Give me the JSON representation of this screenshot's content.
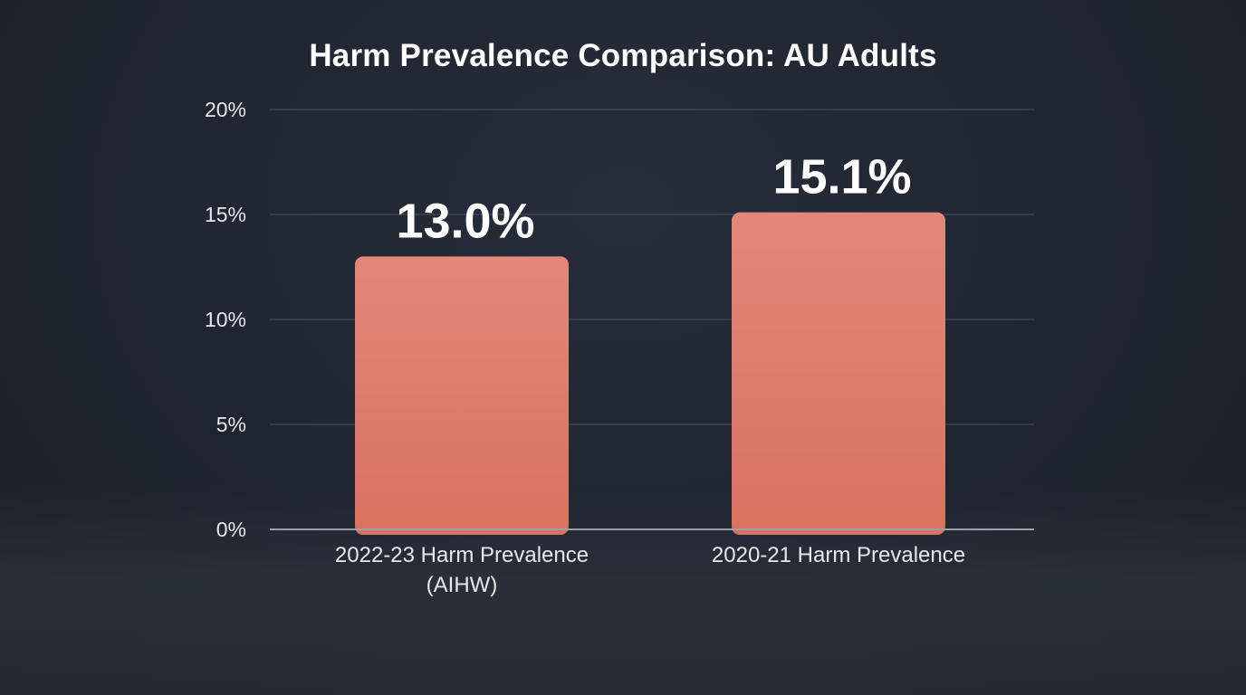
{
  "chart_data": {
    "type": "bar",
    "title": "Harm Prevalence Comparison: AU Adults",
    "categories": [
      [
        "2022-23 Harm Prevalence",
        "(AIHW)"
      ],
      [
        "2020-21 Harm Prevalence"
      ]
    ],
    "values": [
      13.0,
      15.1
    ],
    "value_labels": [
      "13.0%",
      "15.1%"
    ],
    "ylim": [
      0,
      20
    ],
    "yticks": [
      0,
      5,
      10,
      15,
      20
    ],
    "ytick_labels": [
      "0%",
      "5%",
      "10%",
      "15%",
      "20%"
    ],
    "xlabel": "",
    "ylabel": "",
    "grid": true,
    "bar_color": "#df7f6e"
  }
}
